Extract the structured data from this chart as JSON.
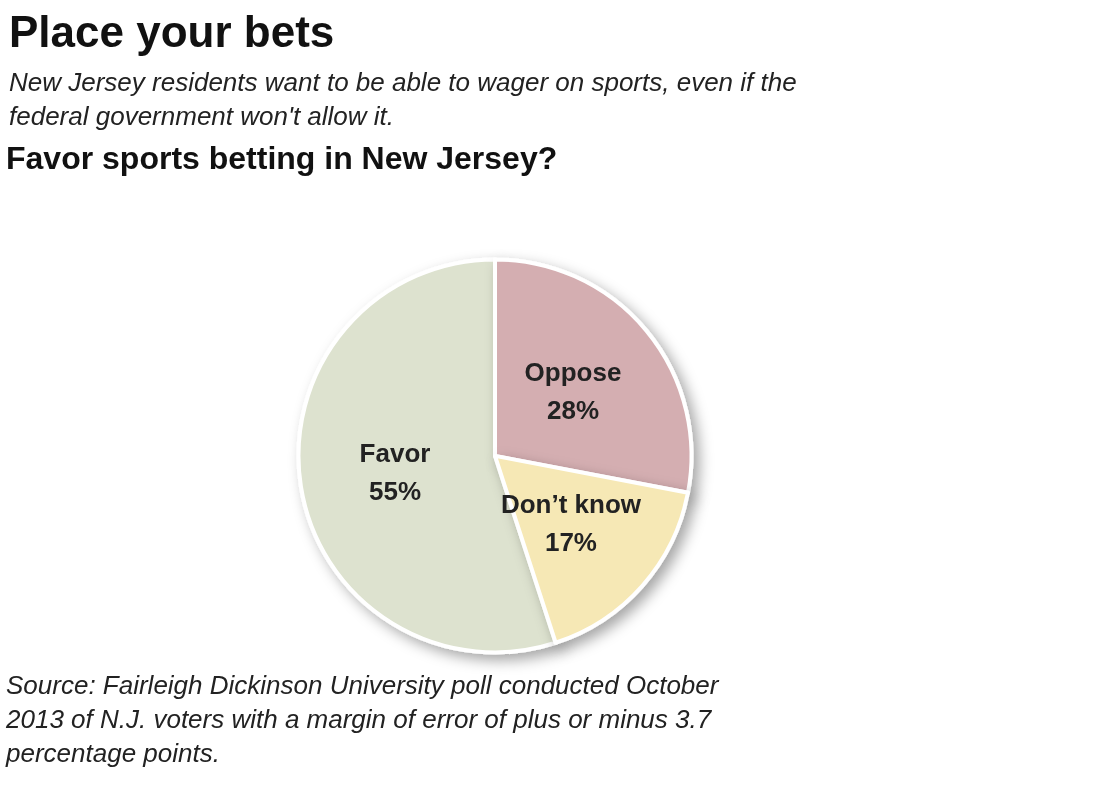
{
  "chart_data": {
    "type": "pie",
    "title": "Place your bets",
    "subtitle": "New Jersey residents want to be able to wager on sports, even if the federal government won't allow it.",
    "annotations": [
      "Favor sports betting in New Jersey?",
      "Source: Fairleigh Dickinson University poll conducted October 2013 of N.J. voters with a margin of error of plus or minus 3.7 percentage points."
    ],
    "categories": [
      "Favor",
      "Oppose",
      "Don’t know"
    ],
    "values": [
      55,
      28,
      17
    ],
    "value_labels": [
      "55%",
      "28%",
      "17%"
    ],
    "colors": [
      "#dde2cf",
      "#d4aeb1",
      "#f6e8b5"
    ]
  }
}
